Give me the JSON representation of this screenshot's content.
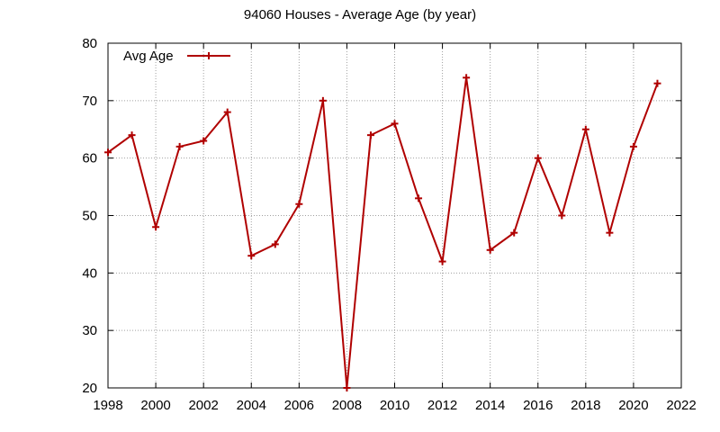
{
  "chart_data": {
    "type": "line",
    "title": "94060 Houses - Average Age (by year)",
    "xlabel": "",
    "ylabel": "",
    "xlim": [
      1998,
      2022
    ],
    "ylim": [
      20,
      80
    ],
    "xticks": [
      "1998",
      "2000",
      "2002",
      "2004",
      "2006",
      "2008",
      "2010",
      "2012",
      "2014",
      "2016",
      "2018",
      "2020",
      "2022"
    ],
    "yticks": [
      "20",
      "30",
      "40",
      "50",
      "60",
      "70",
      "80"
    ],
    "grid": true,
    "legend_position": "top-left",
    "series": [
      {
        "name": "Avg Age",
        "color": "#b00000",
        "marker": "plus",
        "x": [
          1998,
          1999,
          2000,
          2001,
          2002,
          2003,
          2004,
          2005,
          2006,
          2007,
          2008,
          2009,
          2010,
          2011,
          2012,
          2013,
          2014,
          2015,
          2016,
          2017,
          2018,
          2019,
          2020,
          2021
        ],
        "y": [
          61,
          64,
          48,
          62,
          63,
          68,
          43,
          45,
          52,
          70,
          20,
          64,
          66,
          53,
          42,
          74,
          44,
          47,
          60,
          50,
          65,
          47,
          62,
          73
        ]
      }
    ]
  }
}
